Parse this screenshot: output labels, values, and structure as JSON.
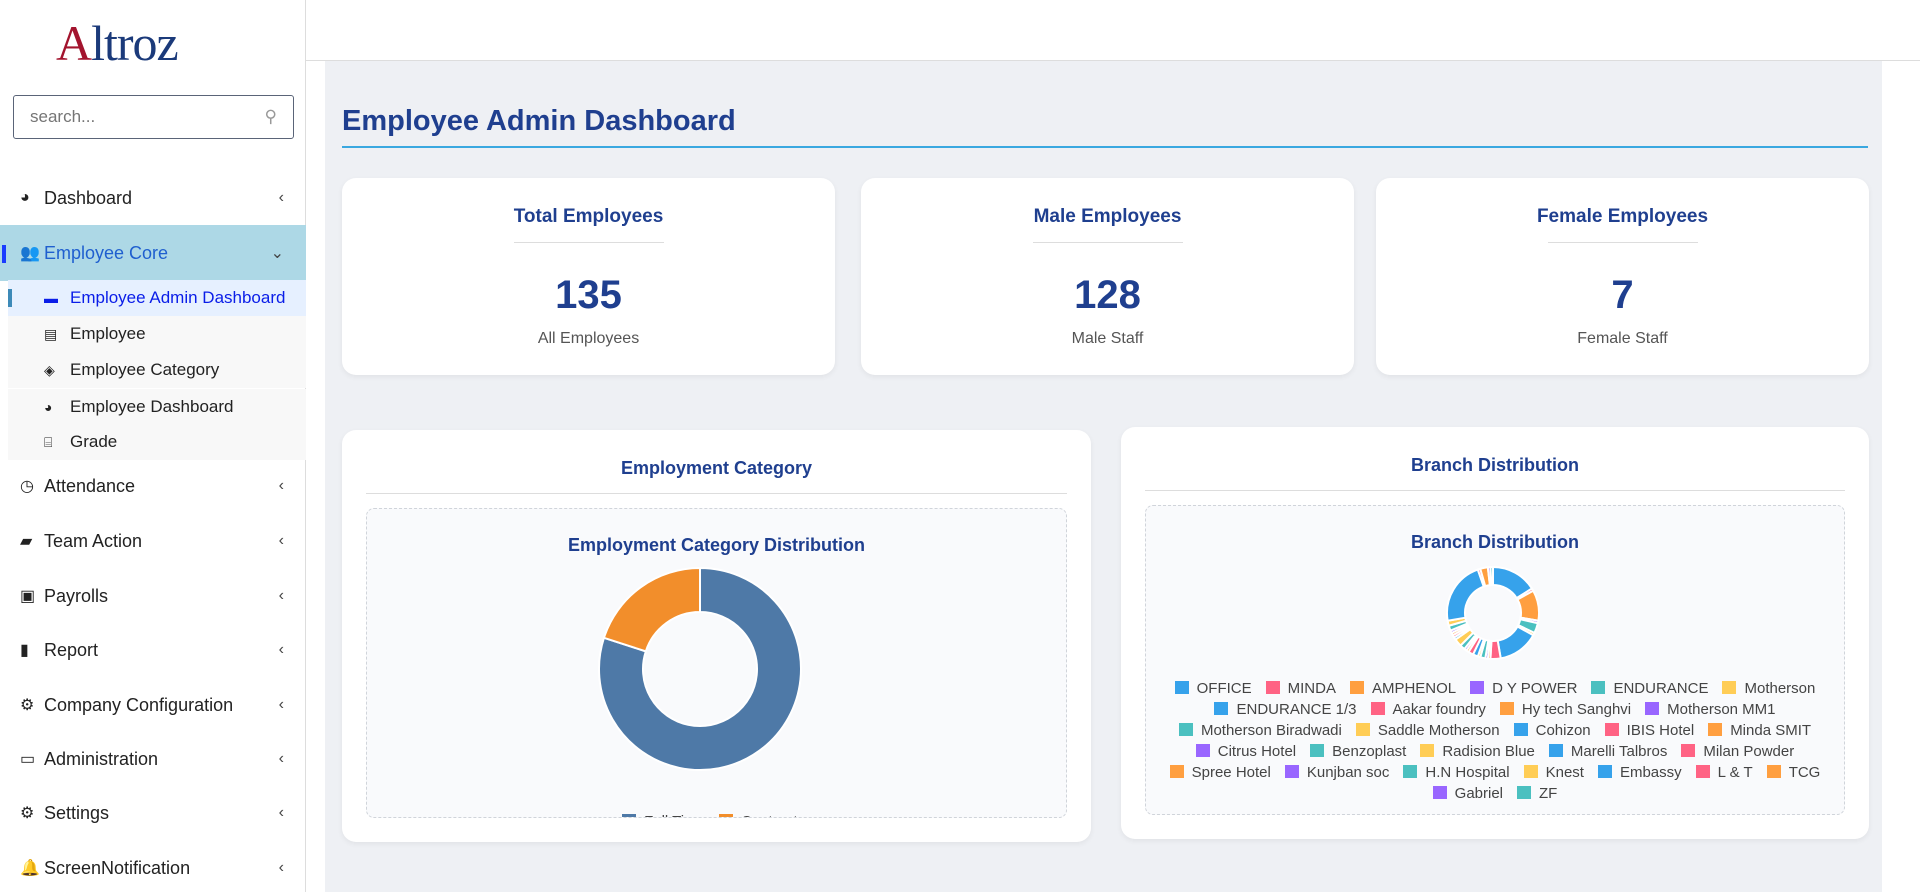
{
  "brand": {
    "logo_text": "Altroz",
    "colors": {
      "logo_red": "#a3142e",
      "logo_blue": "#1b3a7a"
    }
  },
  "search": {
    "placeholder": "search..."
  },
  "sidebar": {
    "items": [
      {
        "label": "Dashboard",
        "icon": "tachometer-icon"
      },
      {
        "label": "Employee Core",
        "icon": "users-icon",
        "expanded": true
      },
      {
        "label": "Attendance",
        "icon": "clock-icon"
      },
      {
        "label": "Team Action",
        "icon": "briefcase-icon"
      },
      {
        "label": "Payrolls",
        "icon": "money-icon"
      },
      {
        "label": "Report",
        "icon": "file-icon"
      },
      {
        "label": "Company Configuration",
        "icon": "cogs-icon"
      },
      {
        "label": "Administration",
        "icon": "desktop-icon"
      },
      {
        "label": "Settings",
        "icon": "gear-icon"
      },
      {
        "label": "ScreenNotification",
        "icon": "bell-icon"
      }
    ],
    "sub_items": [
      {
        "label": "Employee Admin Dashboard",
        "icon": "folder-icon",
        "active": true
      },
      {
        "label": "Employee",
        "icon": "id-card-icon"
      },
      {
        "label": "Employee Category",
        "icon": "tags-icon"
      },
      {
        "label": "Employee Dashboard",
        "icon": "tachometer-icon"
      },
      {
        "label": "Grade",
        "icon": "sitemap-icon"
      }
    ]
  },
  "page": {
    "title": "Employee Admin Dashboard"
  },
  "stats": [
    {
      "title": "Total Employees",
      "value": "135",
      "label": "All Employees"
    },
    {
      "title": "Male Employees",
      "value": "128",
      "label": "Male Staff"
    },
    {
      "title": "Female Employees",
      "value": "7",
      "label": "Female Staff"
    }
  ],
  "chart_data": [
    {
      "type": "pie",
      "donut": true,
      "card_title": "Employment Category",
      "title": "Employment Category Distribution",
      "labels": [
        "Full Time",
        "Contractor"
      ],
      "values": [
        80,
        20
      ],
      "colors": [
        "#4e79a7",
        "#f28e2b"
      ],
      "legend": "bottom"
    },
    {
      "type": "pie",
      "donut": true,
      "card_title": "Branch Distribution",
      "title": "Branch Distribution",
      "legend": "bottom",
      "labels": [
        "OFFICE",
        "MINDA",
        "AMPHENOL",
        "D Y POWER",
        "ENDURANCE",
        "Motherson",
        "ENDURANCE 1/3",
        "Aakar foundry",
        "Hy tech Sanghvi",
        "Motherson MM1",
        "Motherson Biradwadi",
        "Saddle Motherson",
        "Cohizon",
        "IBIS Hotel",
        "Minda SMIT",
        "Citrus Hotel",
        "Benzoplast",
        "Radision Blue",
        "Marelli Talbros",
        "Milan Powder",
        "Spree Hotel",
        "Kunjban soc",
        "H.N Hospital",
        "Knest",
        "Embassy",
        "L & T",
        "TCG",
        "Gabriel",
        "ZF"
      ],
      "values": [
        18,
        1,
        12,
        1,
        4,
        1,
        16,
        4,
        1,
        1,
        2,
        1,
        2,
        2,
        1,
        1,
        2,
        3,
        1,
        1,
        1,
        1,
        2,
        2,
        25,
        1,
        3,
        1,
        1
      ],
      "colors": [
        "#36a2eb",
        "#ff6384",
        "#ff9f40",
        "#9966ff",
        "#4bc0c0",
        "#ffcd56"
      ]
    }
  ]
}
